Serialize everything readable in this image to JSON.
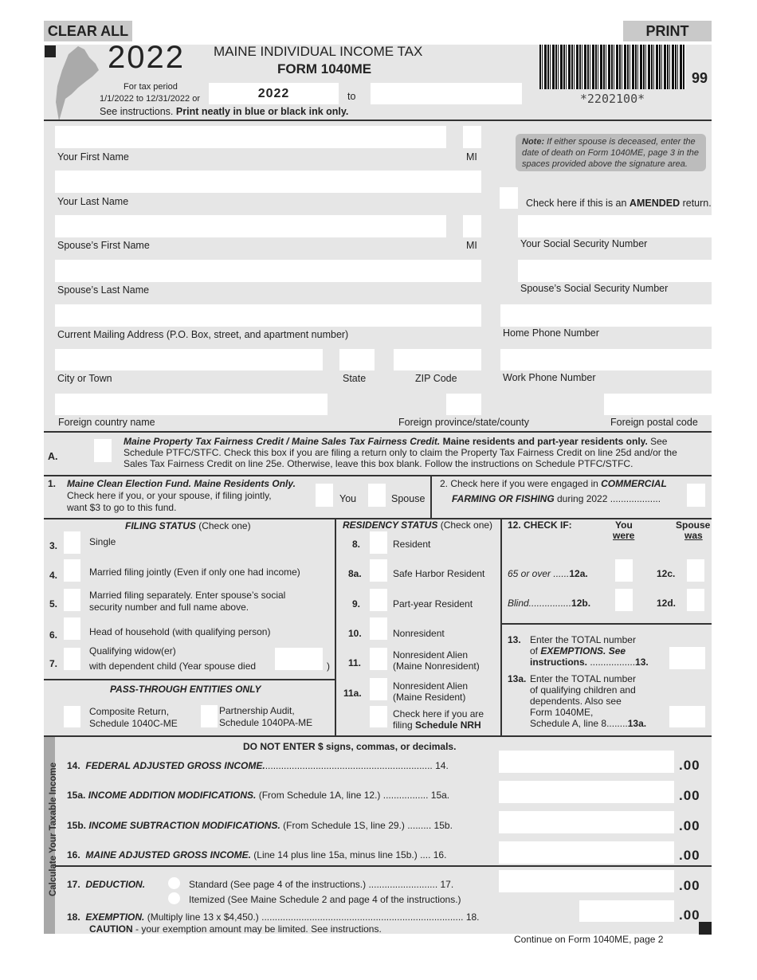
{
  "buttons": {
    "clear_all": "CLEAR ALL",
    "print": "PRINT"
  },
  "header": {
    "year": "2022",
    "title": "MAINE INDIVIDUAL INCOME TAX",
    "form": "FORM 1040ME",
    "tax_period_1": "For tax period",
    "tax_period_2": "1/1/2022 to 12/31/2022 or",
    "instructions": "See instructions.",
    "instructions_bold": "Print neatly in blue or black ink only.",
    "period_start": "2022",
    "to": "to",
    "period_end": "",
    "barcode_text": "*2202100*",
    "code": "99"
  },
  "fields": {
    "first_name": "Your First Name",
    "mi": "MI",
    "last_name": "Your Last Name",
    "spouse_first": "Spouse’s First Name",
    "spouse_last": "Spouse’s Last Name",
    "address": "Current Mailing Address (P.O. Box, street, and apartment number)",
    "city": "City or Town",
    "state": "State",
    "zip": "ZIP Code",
    "foreign_country": "Foreign country name",
    "foreign_province": "Foreign province/state/county",
    "foreign_postal": "Foreign postal code",
    "ssn": "Your Social Security Number",
    "spouse_ssn": "Spouse’s Social Security Number",
    "home_phone": "Home Phone Number",
    "work_phone": "Work Phone Number"
  },
  "note": {
    "label": "Note:",
    "text1": " If either spouse is deceased, enter the",
    "text2": "date of death on Form 1040ME, page 3 in the",
    "text3": "spaces provided above the signature area."
  },
  "amended": {
    "pre": "Check here if this is an ",
    "bold": "AMENDED",
    "post": " return."
  },
  "lineA": {
    "num": "A.",
    "l1_bi": "Maine Property Tax Fairness Credit / Maine Sales Tax Fairness Credit.",
    "l1_b": " Maine residents and part-year residents only.",
    "l1_r": " See",
    "l2": "Schedule PTFC/STFC. Check this box if you are filing a return only to claim the Property Tax Fairness Credit on line 25d and/or the",
    "l3": "Sales Tax Fairness Credit on line 25e. Otherwise, leave this box blank. Follow the instructions on Schedule PTFC/STFC."
  },
  "line1": {
    "num": "1.",
    "title": "Maine Clean Election Fund. Maine Residents Only.",
    "l2": "Check here if you, or your spouse, if filing jointly,",
    "l3": "want $3 to go to this fund.",
    "you": "You",
    "spouse": "Spouse"
  },
  "line2": {
    "pre": "2. Check here if you were engaged in ",
    "bold": "COMMERCIAL",
    "l2_bi": "FARMING OR FISHING",
    "l2_r": " during 2022 ..................."
  },
  "filing": {
    "header_bi": "FILING STATUS",
    "header_r": " (Check one)",
    "items": [
      {
        "num": "3.",
        "label": "Single"
      },
      {
        "num": "4.",
        "label": "Married filing jointly (Even if only one had income)"
      },
      {
        "num": "5.",
        "label": "Married filing separately. Enter spouse’s social",
        "label2": "security number and full name above."
      },
      {
        "num": "6.",
        "label": "Head of household (with qualifying person)"
      },
      {
        "num": "7.",
        "label": "Qualifying widow(er)",
        "label2": "with dependent child    (Year spouse died",
        "close": ")"
      }
    ]
  },
  "passthrough": {
    "header": "PASS-THROUGH ENTITIES ONLY",
    "composite1": "Composite Return,",
    "composite2": "Schedule 1040C-ME",
    "partner1": "Partnership Audit,",
    "partner2": "Schedule 1040PA-ME"
  },
  "residency": {
    "header_bi": "RESIDENCY STATUS",
    "header_r": " (Check one)",
    "items": [
      {
        "num": "8.",
        "label": "Resident"
      },
      {
        "num": "8a.",
        "label": "Safe Harbor Resident"
      },
      {
        "num": "9.",
        "label": "Part-year Resident"
      },
      {
        "num": "10.",
        "label": "Nonresident"
      },
      {
        "num": "11.",
        "label": "Nonresident Alien",
        "label2": "(Maine Nonresident)"
      },
      {
        "num": "11a.",
        "label": "Nonresident Alien",
        "label2": "(Maine Resident)"
      }
    ],
    "nrh1": "Check here if you are",
    "nrh2_r": "filing ",
    "nrh2_b": "Schedule NRH"
  },
  "check12": {
    "header": "12.  CHECK IF:",
    "you1": "You",
    "you2": "were",
    "sp1": "Spouse",
    "sp2": "was",
    "a_label": "65 or over ......",
    "a_num": "12a.",
    "c_num": "12c.",
    "b_label": "Blind................",
    "b_num": "12b.",
    "d_num": "12d."
  },
  "line13": {
    "num": "13.",
    "l1": "Enter the TOTAL number",
    "l2_r": "of ",
    "l2_bi": "EXEMPTIONS. See",
    "l3_b": "instructions.",
    "l3_r": " .................",
    "l3_num": "13."
  },
  "line13a": {
    "num": "13a.",
    "l1": "Enter the TOTAL number",
    "l2": "of qualifying children and",
    "l3": "dependents. Also see",
    "l4": "Form 1040ME,",
    "l5": "Schedule A, line 8........",
    "l5_num": "13a."
  },
  "income": {
    "sidebar": "Calculate Your Taxable Income",
    "notice": "DO NOT ENTER $ signs, commas, or decimals.",
    "cents": ".00",
    "lines": [
      {
        "num": "14.",
        "bi": "FEDERAL ADJUSTED GROSS INCOME.",
        "r": "............................................................... 14."
      },
      {
        "num": "15a.",
        "bi": "INCOME ADDITION MODIFICATIONS.",
        "r": " (From Schedule 1A, line 12.) ................. 15a."
      },
      {
        "num": "15b.",
        "bi": "INCOME SUBTRACTION MODIFICATIONS.",
        "r": " (From Schedule 1S, line 29.) ......... 15b."
      },
      {
        "num": "16.",
        "bi": "MAINE ADJUSTED GROSS INCOME.",
        "r": " (Line 14 plus line 15a, minus line 15b.) .... 16."
      },
      {
        "num": "17.",
        "bi": "DEDUCTION.",
        "std": "Standard (See page 4 of the instructions.) .......................... 17.",
        "item": "Itemized (See Maine Schedule 2 and page 4 of the instructions.)"
      },
      {
        "num": "18.",
        "bi": "EXEMPTION.",
        "r": " (Multiply line 13 x $4,450.) ............................................................................ 18.",
        "caution_b": "CAUTION",
        "caution_r": " - your exemption amount may be limited. See instructions."
      }
    ]
  },
  "footer": {
    "continue": "Continue on Form 1040ME, page 2"
  }
}
